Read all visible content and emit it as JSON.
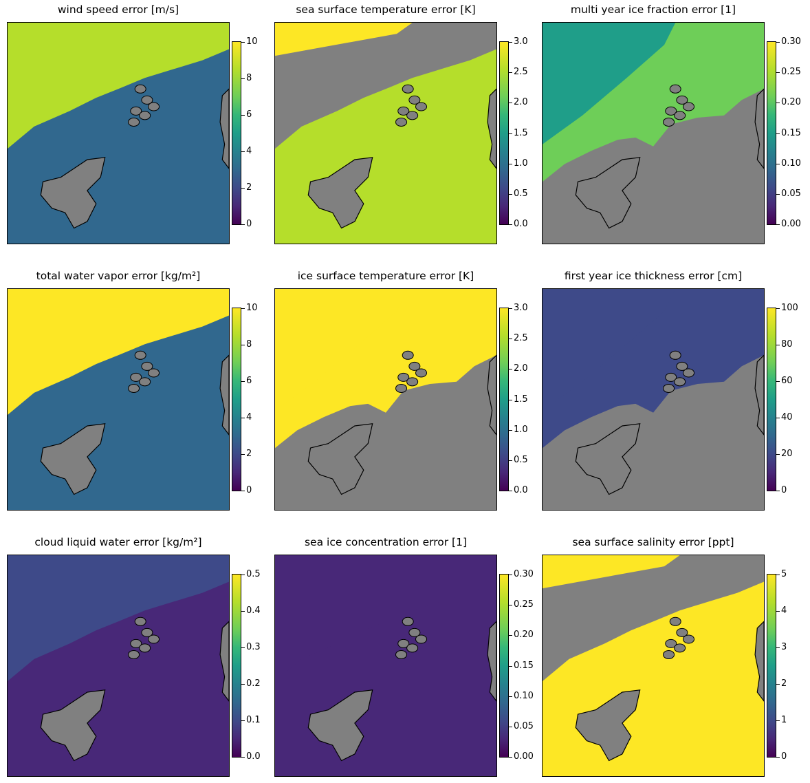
{
  "chart_data": [
    {
      "type": "heatmap",
      "title": "wind speed error [m/s]",
      "colormap": "viridis",
      "clim": [
        0,
        10
      ],
      "colorbar_ticks": [
        "0",
        "2",
        "4",
        "6",
        "8",
        "10"
      ],
      "mask_color": "#808080"
    },
    {
      "type": "heatmap",
      "title": "sea surface temperature error [K]",
      "colormap": "viridis",
      "clim": [
        0,
        3
      ],
      "colorbar_ticks": [
        "0.0",
        "0.5",
        "1.0",
        "1.5",
        "2.0",
        "2.5",
        "3.0"
      ],
      "mask_color": "#808080"
    },
    {
      "type": "heatmap",
      "title": "multi year ice fraction error [1]",
      "colormap": "viridis",
      "clim": [
        0,
        0.3
      ],
      "colorbar_ticks": [
        "0.00",
        "0.05",
        "0.10",
        "0.15",
        "0.20",
        "0.25",
        "0.30"
      ],
      "mask_color": "#808080"
    },
    {
      "type": "heatmap",
      "title": "total water vapor error [kg/m²]",
      "colormap": "viridis",
      "clim": [
        0,
        10
      ],
      "colorbar_ticks": [
        "0",
        "2",
        "4",
        "6",
        "8",
        "10"
      ],
      "mask_color": "#808080"
    },
    {
      "type": "heatmap",
      "title": "ice surface temperature error [K]",
      "colormap": "viridis",
      "clim": [
        0,
        3
      ],
      "colorbar_ticks": [
        "0.0",
        "0.5",
        "1.0",
        "1.5",
        "2.0",
        "2.5",
        "3.0"
      ],
      "mask_color": "#808080"
    },
    {
      "type": "heatmap",
      "title": "first year ice thickness error [cm]",
      "colormap": "viridis",
      "clim": [
        0,
        100
      ],
      "colorbar_ticks": [
        "0",
        "20",
        "40",
        "60",
        "80",
        "100"
      ],
      "mask_color": "#808080"
    },
    {
      "type": "heatmap",
      "title": "cloud liquid water error [kg/m²]",
      "colormap": "viridis",
      "clim": [
        0,
        0.5
      ],
      "colorbar_ticks": [
        "0.0",
        "0.1",
        "0.2",
        "0.3",
        "0.4",
        "0.5"
      ],
      "mask_color": "#808080"
    },
    {
      "type": "heatmap",
      "title": "sea ice concentration error [1]",
      "colormap": "viridis",
      "clim": [
        0,
        0.3
      ],
      "colorbar_ticks": [
        "0.00",
        "0.05",
        "0.10",
        "0.15",
        "0.20",
        "0.25",
        "0.30"
      ],
      "mask_color": "#808080"
    },
    {
      "type": "heatmap",
      "title": "sea surface salinity error [ppt]",
      "colormap": "viridis",
      "clim": [
        0,
        5
      ],
      "colorbar_ticks": [
        "0",
        "1",
        "2",
        "3",
        "4",
        "5"
      ],
      "mask_color": "#808080"
    }
  ]
}
